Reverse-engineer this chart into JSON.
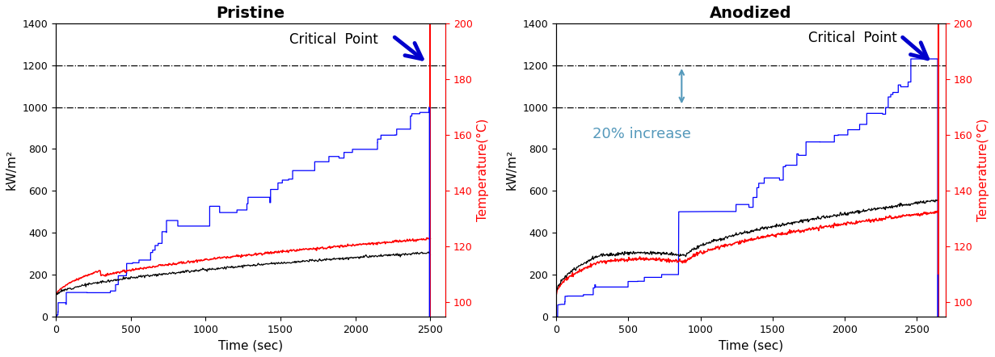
{
  "left_title": "Pristine",
  "right_title": "Anodized",
  "xlabel": "Time (sec)",
  "left_ylabel": "kW/m²",
  "right_ylabel": "Temperature(°C)",
  "ylim_left": [
    0,
    1400
  ],
  "ylim_right": [
    95,
    200
  ],
  "xlim_pristine": [
    0,
    2600
  ],
  "xlim_anodized": [
    0,
    2700
  ],
  "critical_line": 1200,
  "second_line": 1000,
  "temp_yticks": [
    100,
    120,
    140,
    160,
    180,
    200
  ],
  "left_yticks": [
    0,
    200,
    400,
    600,
    800,
    1000,
    1200,
    1400
  ],
  "pristine_xticks": [
    0,
    500,
    1000,
    1500,
    2000,
    2500
  ],
  "anodized_xticks": [
    0,
    500,
    1000,
    1500,
    2000,
    2500
  ],
  "critical_point_text": "Critical  Point",
  "increase_text": "20% increase",
  "colors": {
    "blue": "#0000FF",
    "red": "#FF0000",
    "black": "#000000",
    "dark_blue_arrow": "#0000CC",
    "light_blue_arrow": "#5599BB"
  },
  "title_fontsize": 14,
  "label_fontsize": 11,
  "tick_fontsize": 9,
  "annotation_fontsize": 12
}
